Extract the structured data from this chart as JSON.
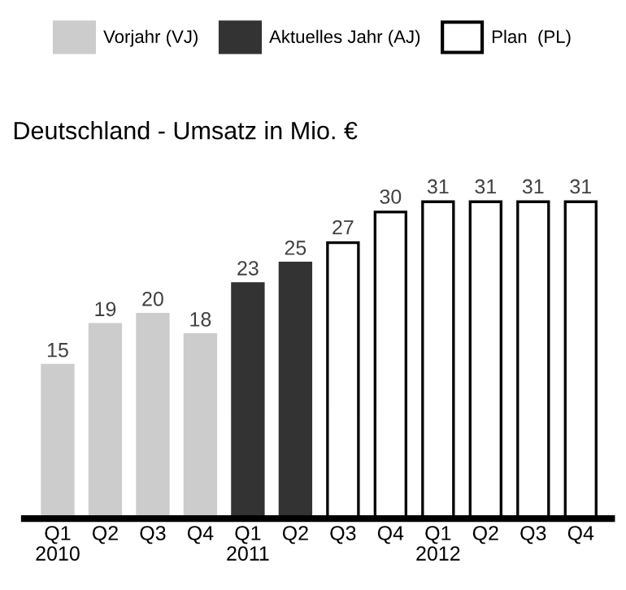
{
  "chart_data": {
    "type": "bar",
    "title": "Deutschland - Umsatz in Mio. €",
    "categories": [
      "Q1\n2010",
      "Q2",
      "Q3",
      "Q4",
      "Q1\n2011",
      "Q2",
      "Q3",
      "Q4",
      "Q1\n2012",
      "Q2",
      "Q3",
      "Q4"
    ],
    "series": [
      {
        "name": "Vorjahr (VJ)",
        "color": "#cccccc",
        "values": [
          15,
          19,
          20,
          18,
          null,
          null,
          null,
          null,
          null,
          null,
          null,
          null
        ]
      },
      {
        "name": "Aktuelles Jahr (AJ)",
        "color": "#333333",
        "values": [
          null,
          null,
          null,
          null,
          23,
          25,
          null,
          null,
          null,
          null,
          null,
          null
        ]
      },
      {
        "name": "Plan  (PL)",
        "color": "#ffffff",
        "values": [
          null,
          null,
          null,
          null,
          null,
          null,
          27,
          30,
          31,
          31,
          31,
          31
        ]
      }
    ],
    "data_labels": true,
    "legend": "top",
    "grid": false
  }
}
